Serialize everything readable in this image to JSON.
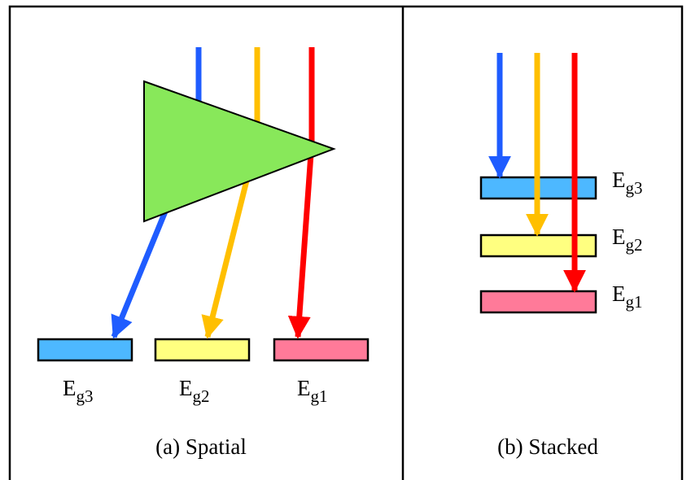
{
  "panels": [
    {
      "caption": "(a) Spatial",
      "labels": [
        {
          "main": "E",
          "sub": "g3"
        },
        {
          "main": "E",
          "sub": "g2"
        },
        {
          "main": "E",
          "sub": "g1"
        }
      ]
    },
    {
      "caption": "(b) Stacked",
      "labels": [
        {
          "main": "E",
          "sub": "g3"
        },
        {
          "main": "E",
          "sub": "g2"
        },
        {
          "main": "E",
          "sub": "g1"
        }
      ]
    }
  ]
}
